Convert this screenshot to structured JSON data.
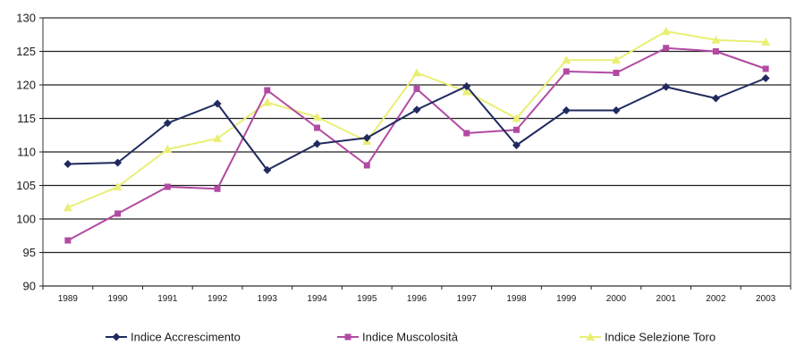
{
  "chart_data": {
    "type": "line",
    "title": "",
    "xlabel": "",
    "ylabel": "",
    "x": [
      "1989",
      "1990",
      "1991",
      "1992",
      "1993",
      "1994",
      "1995",
      "1996",
      "1997",
      "1998",
      "1999",
      "2000",
      "2001",
      "2002",
      "2003"
    ],
    "ylim": [
      90,
      130
    ],
    "yticks": [
      90,
      95,
      100,
      105,
      110,
      115,
      120,
      125,
      130
    ],
    "grid": "horizontal",
    "legend_position": "bottom",
    "series": [
      {
        "name": "Indice Accrescimento",
        "color": "#1f2a5e",
        "marker": "diamond",
        "values": [
          108.2,
          108.4,
          114.3,
          117.2,
          107.3,
          111.2,
          112.1,
          116.3,
          119.8,
          111.0,
          116.2,
          116.2,
          119.7,
          118.0,
          121.0
        ]
      },
      {
        "name": "Indice Muscolosità",
        "color": "#b24aa3",
        "marker": "square",
        "values": [
          96.8,
          100.8,
          104.8,
          104.5,
          119.2,
          113.6,
          108.0,
          119.4,
          112.8,
          113.3,
          122.0,
          121.8,
          125.5,
          125.0,
          122.4
        ]
      },
      {
        "name": "Indice Selezione Toro",
        "color": "#e9ef74",
        "marker": "triangle",
        "values": [
          101.7,
          104.8,
          110.4,
          112.0,
          117.4,
          115.2,
          111.6,
          121.8,
          119.0,
          115.0,
          123.7,
          123.7,
          128.0,
          126.7,
          126.4
        ]
      }
    ]
  }
}
